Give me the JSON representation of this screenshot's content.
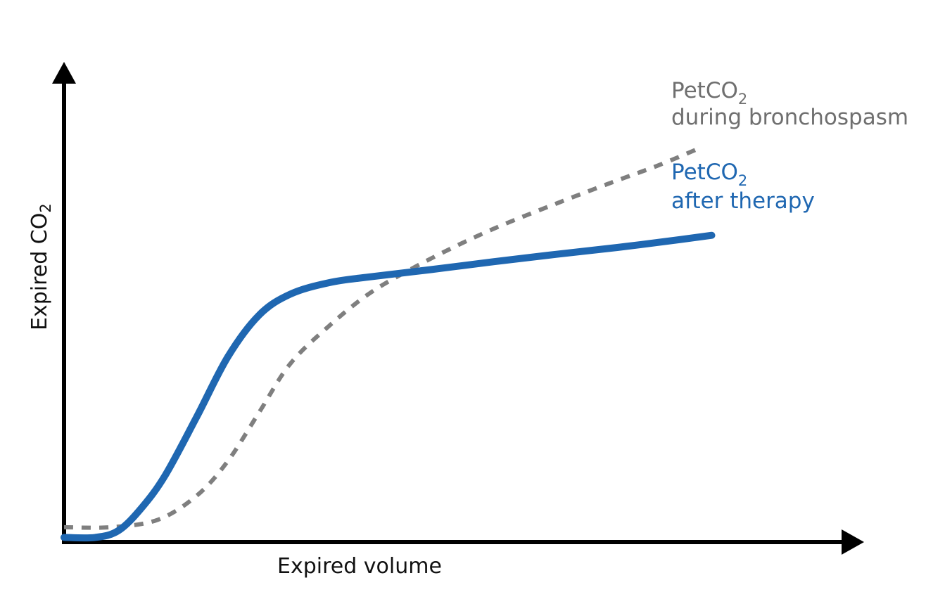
{
  "chart_data": {
    "type": "line",
    "xlabel": "Expired volume",
    "ylabel": {
      "main": "Expired CO",
      "subscript": "2"
    },
    "xlim": [
      0,
      100
    ],
    "ylim": [
      0,
      100
    ],
    "x_ticks_shown": false,
    "y_ticks_shown": false,
    "grid": false,
    "legend": "inline labels at line ends (right)",
    "series": [
      {
        "name": "PetCO2 during bronchospasm",
        "label_line1": {
          "main": "PetCO",
          "subscript": "2"
        },
        "label_line2": "during bronchospasm",
        "color": "#7f7f7f",
        "style": "dashed",
        "points": [
          [
            0,
            3.2
          ],
          [
            6,
            3.2
          ],
          [
            12,
            4.8
          ],
          [
            17,
            10
          ],
          [
            21,
            17.5
          ],
          [
            25,
            28
          ],
          [
            29,
            38.5
          ],
          [
            34,
            46.7
          ],
          [
            39,
            53.5
          ],
          [
            44,
            58.5
          ],
          [
            50,
            63.7
          ],
          [
            56,
            68.3
          ],
          [
            63,
            73
          ],
          [
            70,
            77.5
          ],
          [
            76,
            81.2
          ],
          [
            81,
            84.7
          ]
        ]
      },
      {
        "name": "PetCO2 after therapy",
        "label_line1": {
          "main": "PetCO",
          "subscript": "2"
        },
        "label_line2": "after therapy",
        "color": "#1f67b1",
        "style": "solid",
        "points": [
          [
            0,
            1
          ],
          [
            4,
            1
          ],
          [
            7,
            2.5
          ],
          [
            10,
            7.5
          ],
          [
            13,
            14.5
          ],
          [
            17,
            27
          ],
          [
            21,
            40
          ],
          [
            25,
            49
          ],
          [
            29,
            53.5
          ],
          [
            34,
            56
          ],
          [
            39,
            57.2
          ],
          [
            47,
            58.8
          ],
          [
            55,
            60.5
          ],
          [
            63,
            62.1
          ],
          [
            71,
            63.6
          ],
          [
            79,
            65.3
          ],
          [
            83,
            66.2
          ]
        ]
      }
    ]
  }
}
